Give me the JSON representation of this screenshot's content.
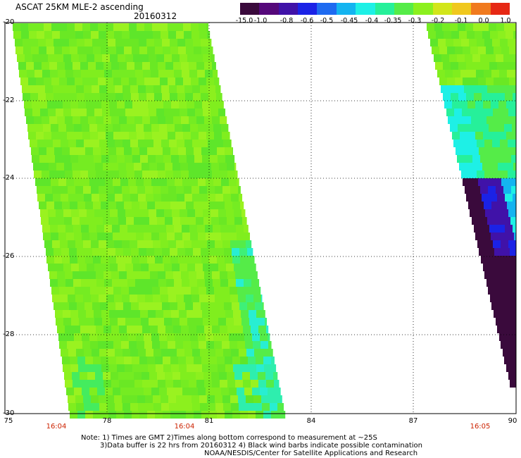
{
  "header": {
    "title": "ASCAT 25KM MLE-2 ascending",
    "date": "20160312"
  },
  "colorbar": {
    "labels": [
      "-15.0",
      "-1.0",
      "-0.8",
      "-0.6",
      "-0.5",
      "-0.45",
      "-0.4",
      "-0.35",
      "-0.3",
      "-0.2",
      "-0.1",
      "0.0",
      "1.0"
    ],
    "colors": [
      "#3a0a3c",
      "#55087a",
      "#4012a8",
      "#1b22e6",
      "#1e6af0",
      "#14b4f0",
      "#1ef0e6",
      "#26f09a",
      "#55ec48",
      "#8cf01e",
      "#d2e61a",
      "#f0c81e",
      "#f07a1e",
      "#e62814"
    ]
  },
  "axes": {
    "lat_labels": [
      "-20",
      "-22",
      "-24",
      "-26",
      "-28",
      "-30"
    ],
    "lon_labels": [
      "75",
      "78",
      "81",
      "84",
      "87",
      "90"
    ],
    "times": [
      "16:04",
      "16:04",
      "16:05"
    ]
  },
  "notes": [
    "Note: 1) Times are GMT 2)Times along bottom correspond to measurement at ~25S",
    "3)Data buffer is 22 hrs from 20160312 4) Black wind barbs indicate possible contamination",
    "NOAA/NESDIS/Center for Satellite Applications and Research"
  ]
}
